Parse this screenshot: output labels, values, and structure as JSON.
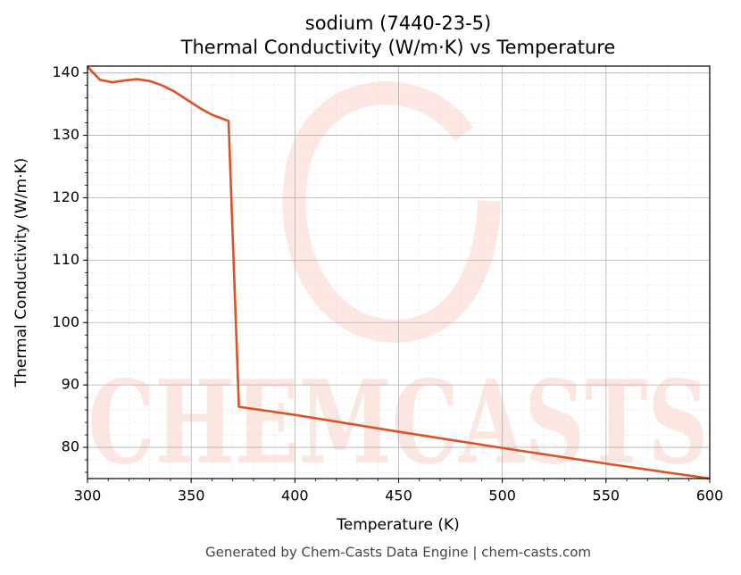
{
  "chart_data": {
    "type": "line",
    "title": "sodium (7440-23-5)",
    "subtitle": "Thermal Conductivity (W/m·K) vs Temperature",
    "xlabel": "Temperature (K)",
    "ylabel": "Thermal Conductivity (W/m·K)",
    "footer": "Generated by Chem-Casts Data Engine | chem-casts.com",
    "watermark": "CHEMCASTS",
    "x": [
      300,
      306,
      312,
      318,
      324,
      330,
      336,
      342,
      348,
      354,
      360,
      364,
      368,
      373,
      400,
      450,
      500,
      550,
      600
    ],
    "series": [
      {
        "name": "sodium",
        "color": "#d95327",
        "values": [
          141,
          138.9,
          138.5,
          138.8,
          139.0,
          138.7,
          138.0,
          137.0,
          135.7,
          134.4,
          133.3,
          132.8,
          132.3,
          86.5,
          85.2,
          82.5,
          79.9,
          77.4,
          75
        ]
      }
    ],
    "xlim": [
      300,
      600
    ],
    "xticks": [
      300,
      350,
      400,
      450,
      500,
      550,
      600
    ],
    "ylim": [
      75,
      141.1
    ],
    "yticks": [
      80,
      90,
      100,
      110,
      120,
      130,
      140
    ],
    "grid": true
  }
}
